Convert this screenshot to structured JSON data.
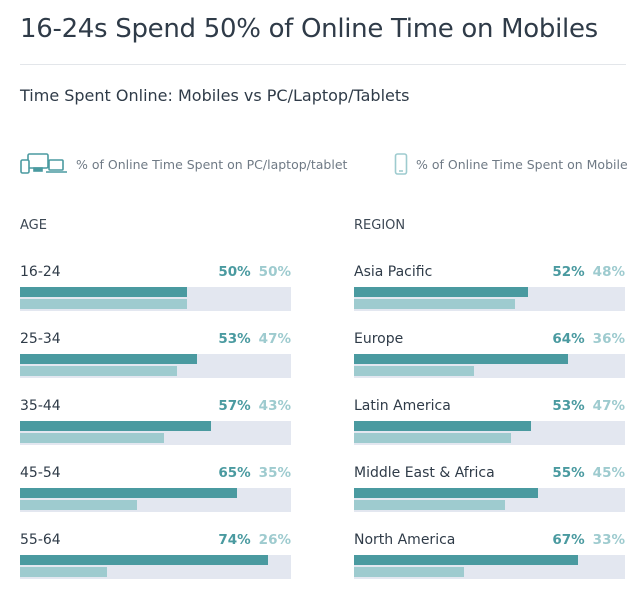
{
  "title": "16-24s Spend 50% of Online Time on Mobiles",
  "subtitle": "Time Spent Online: Mobiles vs PC/Laptop/Tablets",
  "colors": {
    "pc": "#4a9aa0",
    "mobile": "#9ecbcf",
    "track": "#e3e7f0"
  },
  "legend": {
    "pc": "% of Online Time Spent on PC/laptop/tablet",
    "mobile": "% of Online Time Spent on Mobile",
    "pc_icon": "devices-icon",
    "mobile_icon": "mobile-phone-icon"
  },
  "chart_data": [
    {
      "type": "bar",
      "orientation": "horizontal",
      "title": "AGE",
      "xlim": [
        0,
        81
      ],
      "categories": [
        "16-24",
        "25-34",
        "35-44",
        "45-54",
        "55-64"
      ],
      "series": [
        {
          "name": "% of Online Time Spent on PC/laptop/tablet",
          "values": [
            50,
            53,
            57,
            65,
            74
          ]
        },
        {
          "name": "% of Online Time Spent on Mobile",
          "values": [
            50,
            47,
            43,
            35,
            26
          ]
        }
      ]
    },
    {
      "type": "bar",
      "orientation": "horizontal",
      "title": "REGION",
      "xlim": [
        0,
        81
      ],
      "categories": [
        "Asia Pacific",
        "Europe",
        "Latin America",
        "Middle East & Africa",
        "North America"
      ],
      "series": [
        {
          "name": "% of Online Time Spent on PC/laptop/tablet",
          "values": [
            52,
            64,
            53,
            55,
            67
          ]
        },
        {
          "name": "% of Online Time Spent on Mobile",
          "values": [
            48,
            36,
            47,
            45,
            33
          ]
        }
      ]
    }
  ]
}
